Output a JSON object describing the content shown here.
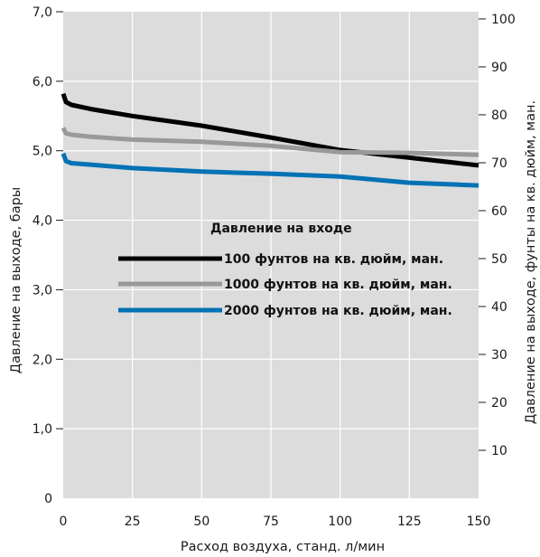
{
  "chart_data": {
    "type": "line",
    "x_label": "Расход воздуха, станд. л/мин",
    "y_label_left": "Давление на выходе, бары",
    "y_label_right": "Давление на выходе, фунты на кв. дюйм, ман.",
    "x_ticks": [
      "0",
      "25",
      "50",
      "75",
      "100",
      "125",
      "150"
    ],
    "y_left_ticks": [
      "0",
      "1,0",
      "2,0",
      "3,0",
      "4,0",
      "5,0",
      "6,0",
      "7,0"
    ],
    "y_right_ticks": [
      "10",
      "20",
      "30",
      "40",
      "50",
      "60",
      "70",
      "80",
      "90",
      "100"
    ],
    "xlim": [
      0,
      150
    ],
    "ylim_left": [
      0,
      7
    ],
    "ylim_right": [
      0,
      101.5
    ],
    "grid": true,
    "plot_background": "#dcdcdc",
    "legend": {
      "title": "Давление на входе",
      "placement": "center"
    },
    "series": [
      {
        "name": "100 фунтов на кв. дюйм, ман.",
        "color": "#000000",
        "points": [
          [
            0,
            5.82
          ],
          [
            1,
            5.7
          ],
          [
            3,
            5.66
          ],
          [
            10,
            5.6
          ],
          [
            25,
            5.5
          ],
          [
            50,
            5.36
          ],
          [
            75,
            5.19
          ],
          [
            100,
            5.01
          ],
          [
            125,
            4.9
          ],
          [
            150,
            4.79
          ]
        ]
      },
      {
        "name": "1000 фунтов на кв. дюйм, ман.",
        "color": "#999999",
        "points": [
          [
            0,
            5.33
          ],
          [
            1,
            5.25
          ],
          [
            3,
            5.23
          ],
          [
            10,
            5.2
          ],
          [
            25,
            5.16
          ],
          [
            50,
            5.13
          ],
          [
            75,
            5.07
          ],
          [
            100,
            4.98
          ],
          [
            125,
            4.97
          ],
          [
            150,
            4.94
          ]
        ]
      },
      {
        "name": "2000 фунтов на кв. дюйм, ман.",
        "color": "#0072b5",
        "points": [
          [
            0,
            4.96
          ],
          [
            1,
            4.85
          ],
          [
            3,
            4.82
          ],
          [
            10,
            4.8
          ],
          [
            25,
            4.75
          ],
          [
            50,
            4.7
          ],
          [
            75,
            4.67
          ],
          [
            100,
            4.63
          ],
          [
            125,
            4.54
          ],
          [
            150,
            4.5
          ]
        ]
      }
    ]
  }
}
